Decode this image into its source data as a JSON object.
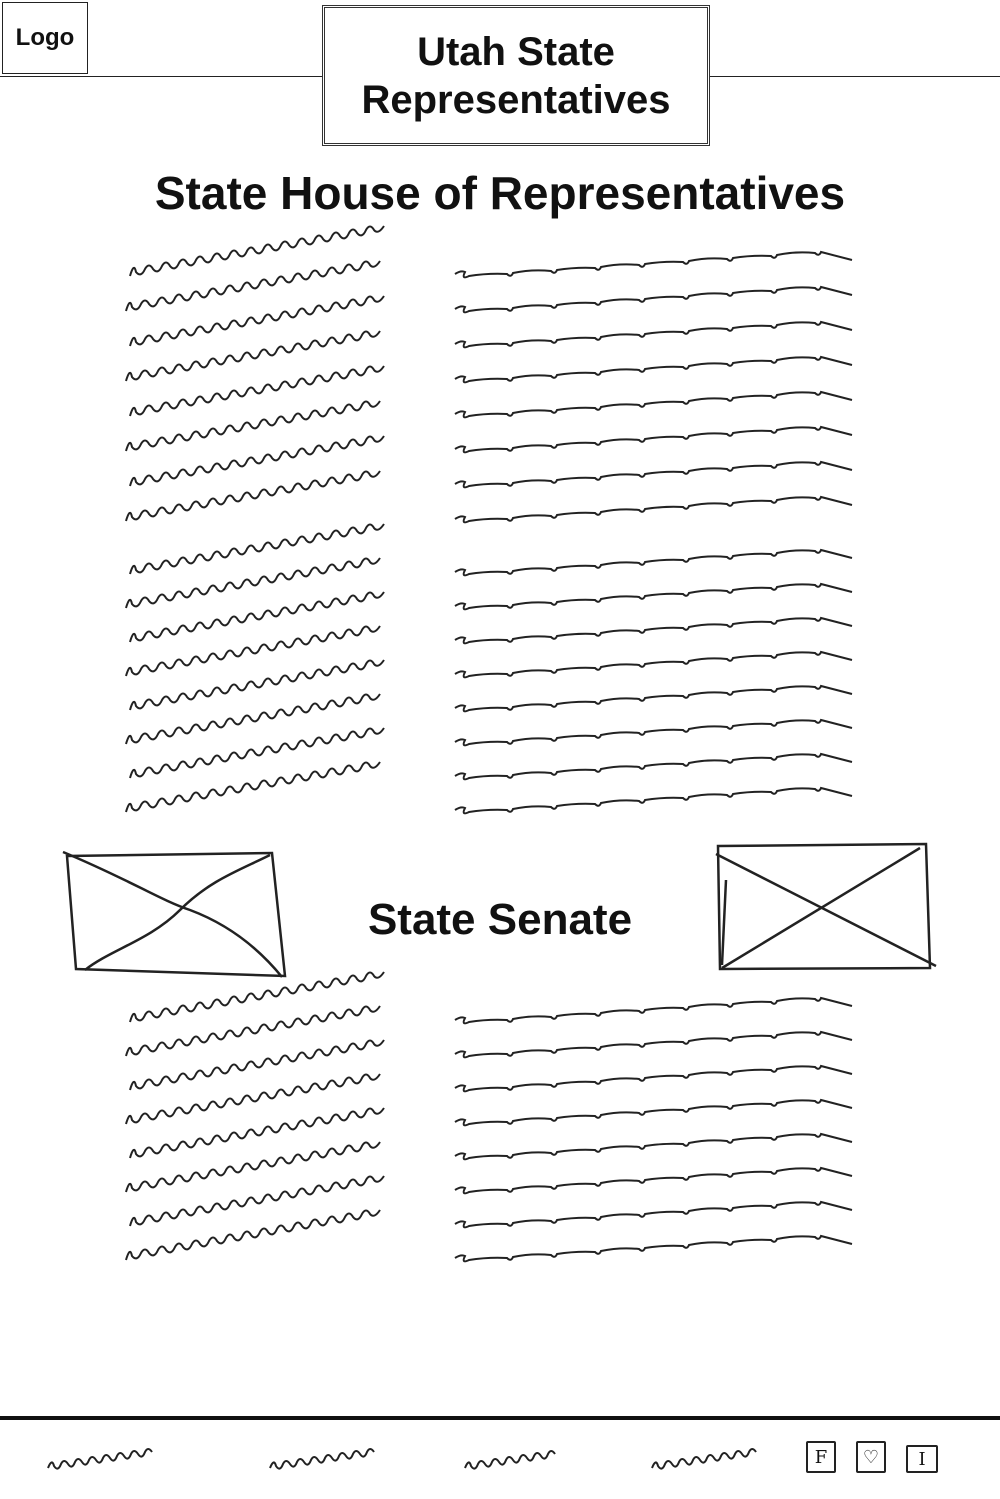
{
  "header": {
    "logo_label": "Logo",
    "title_line1": "Utah State",
    "title_line2": "Representatives"
  },
  "house": {
    "heading": "State House  of Representatives"
  },
  "senate": {
    "heading": "State Senate"
  },
  "footer": {
    "social": [
      {
        "icon": "facebook-icon",
        "glyph": "F"
      },
      {
        "icon": "instagram-icon",
        "glyph": "♡"
      },
      {
        "icon": "twitter-icon",
        "glyph": "I"
      }
    ]
  }
}
